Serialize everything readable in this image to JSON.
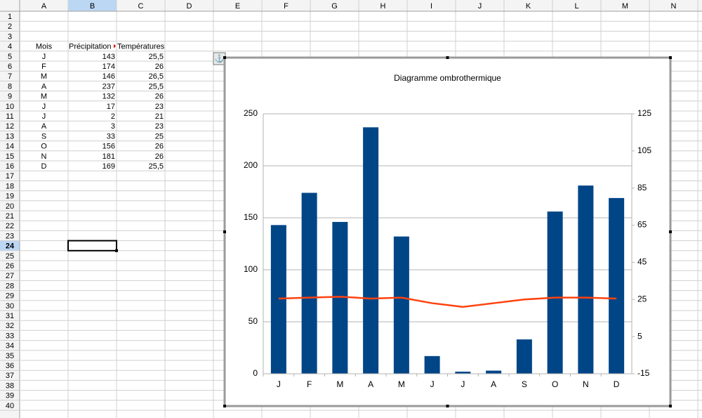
{
  "sheet": {
    "columns": [
      "A",
      "B",
      "C",
      "D",
      "E",
      "F",
      "G",
      "H",
      "I",
      "J",
      "K",
      "L",
      "M",
      "N"
    ],
    "rows": [
      1,
      2,
      3,
      4,
      5,
      6,
      7,
      8,
      9,
      10,
      11,
      12,
      13,
      14,
      15,
      16,
      17,
      18,
      19,
      20,
      21,
      22,
      23,
      24,
      25,
      26,
      27,
      28,
      29,
      30,
      31,
      32,
      33,
      34,
      35,
      36,
      37,
      38,
      39,
      40
    ],
    "table": {
      "header": [
        "Mois",
        "Précipitation",
        "Températures"
      ],
      "rows": [
        [
          "J",
          "143",
          "25,5"
        ],
        [
          "F",
          "174",
          "26"
        ],
        [
          "M",
          "146",
          "26,5"
        ],
        [
          "A",
          "237",
          "25,5"
        ],
        [
          "M",
          "132",
          "26"
        ],
        [
          "J",
          "17",
          "23"
        ],
        [
          "J",
          "2",
          "21"
        ],
        [
          "A",
          "3",
          "23"
        ],
        [
          "S",
          "33",
          "25"
        ],
        [
          "O",
          "156",
          "26"
        ],
        [
          "N",
          "181",
          "26"
        ],
        [
          "D",
          "169",
          "25,5"
        ]
      ]
    }
  },
  "chart_data": {
    "type": "bar",
    "title": "Diagramme ombrothermique",
    "categories": [
      "J",
      "F",
      "M",
      "A",
      "M",
      "J",
      "J",
      "A",
      "S",
      "O",
      "N",
      "D"
    ],
    "series": [
      {
        "type": "bar",
        "color": "#004586",
        "values": [
          143,
          174,
          146,
          237,
          132,
          17,
          2,
          3,
          33,
          156,
          181,
          169
        ]
      },
      {
        "type": "line",
        "axis": "y2",
        "color": "#ff420e",
        "values": [
          25.5,
          26,
          26.5,
          25.5,
          26,
          23,
          21,
          23,
          25,
          26,
          26,
          25.5
        ]
      }
    ],
    "ylim": [
      0,
      250
    ],
    "yticks": [
      0,
      50,
      100,
      150,
      200,
      250
    ],
    "y2lim": [
      -15,
      125
    ],
    "y2ticks": [
      -15,
      5,
      25,
      45,
      65,
      85,
      105,
      125
    ],
    "grid": true
  }
}
